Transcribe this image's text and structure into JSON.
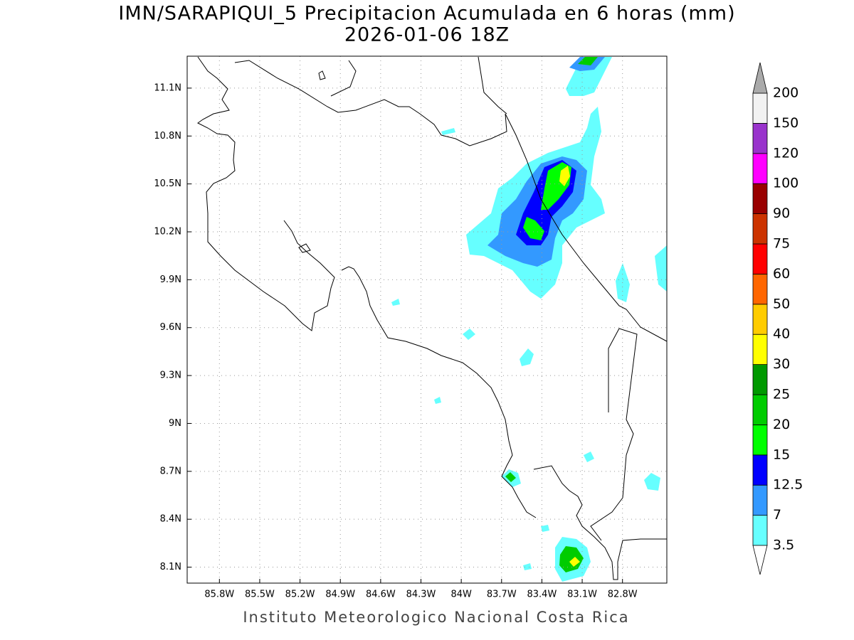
{
  "title": "IMN/SARAPIQUI_5 Precipitacion Acumulada en 6 horas (mm)",
  "subtitle": "2026-01-06 18Z",
  "footer": "Instituto Meteorologico Nacional Costa Rica",
  "map": {
    "xlim": [
      -86.04,
      -82.47
    ],
    "ylim": [
      8.0,
      11.3
    ],
    "xticks": [
      {
        "value": -85.8,
        "label": "85.8W"
      },
      {
        "value": -85.5,
        "label": "85.5W"
      },
      {
        "value": -85.2,
        "label": "85.2W"
      },
      {
        "value": -84.9,
        "label": "84.9W"
      },
      {
        "value": -84.6,
        "label": "84.6W"
      },
      {
        "value": -84.3,
        "label": "84.3W"
      },
      {
        "value": -84,
        "label": "84W"
      },
      {
        "value": -83.7,
        "label": "83.7W"
      },
      {
        "value": -83.4,
        "label": "83.4W"
      },
      {
        "value": -83.1,
        "label": "83.1W"
      },
      {
        "value": -82.8,
        "label": "82.8W"
      }
    ],
    "yticks": [
      {
        "value": 8.1,
        "label": "8.1N"
      },
      {
        "value": 8.4,
        "label": "8.4N"
      },
      {
        "value": 8.7,
        "label": "8.7N"
      },
      {
        "value": 9,
        "label": "9N"
      },
      {
        "value": 9.3,
        "label": "9.3N"
      },
      {
        "value": 9.6,
        "label": "9.6N"
      },
      {
        "value": 9.9,
        "label": "9.9N"
      },
      {
        "value": 10.2,
        "label": "10.2N"
      },
      {
        "value": 10.5,
        "label": "10.5N"
      },
      {
        "value": 10.8,
        "label": "10.8N"
      },
      {
        "value": 11.1,
        "label": "11.1N"
      }
    ],
    "grid": true
  },
  "colorbar": {
    "levels": [
      3.5,
      7,
      12.5,
      15,
      20,
      25,
      30,
      40,
      50,
      60,
      75,
      90,
      100,
      120,
      150,
      200
    ],
    "colors": [
      "#66ffff",
      "#3399ff",
      "#0000ff",
      "#00ff00",
      "#00cc00",
      "#009900",
      "#ffff00",
      "#ffcc00",
      "#ff6600",
      "#ff0000",
      "#cc3300",
      "#990000",
      "#ff00ff",
      "#9933cc",
      "#f2f2f2"
    ],
    "under_color": "#ffffff",
    "over_color": "#aaaaaa"
  }
}
